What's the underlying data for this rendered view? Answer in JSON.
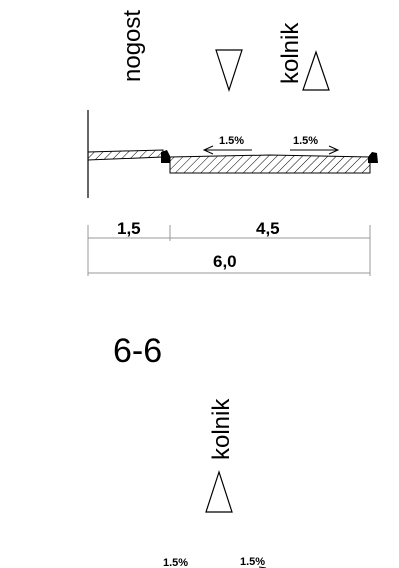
{
  "section_a": {
    "labels": {
      "sidewalk": "nogost",
      "roadway": "kolnik"
    },
    "slopes": {
      "left": "1.5%",
      "right": "1.5%"
    },
    "dimensions": {
      "sidewalk_width": "1,5",
      "roadway_width": "4,5",
      "total_width": "6,0"
    }
  },
  "section_b": {
    "title": "6-6",
    "labels": {
      "roadway": "kolnik"
    },
    "slopes": {
      "left": "1.5%",
      "right": "1.5%"
    }
  }
}
